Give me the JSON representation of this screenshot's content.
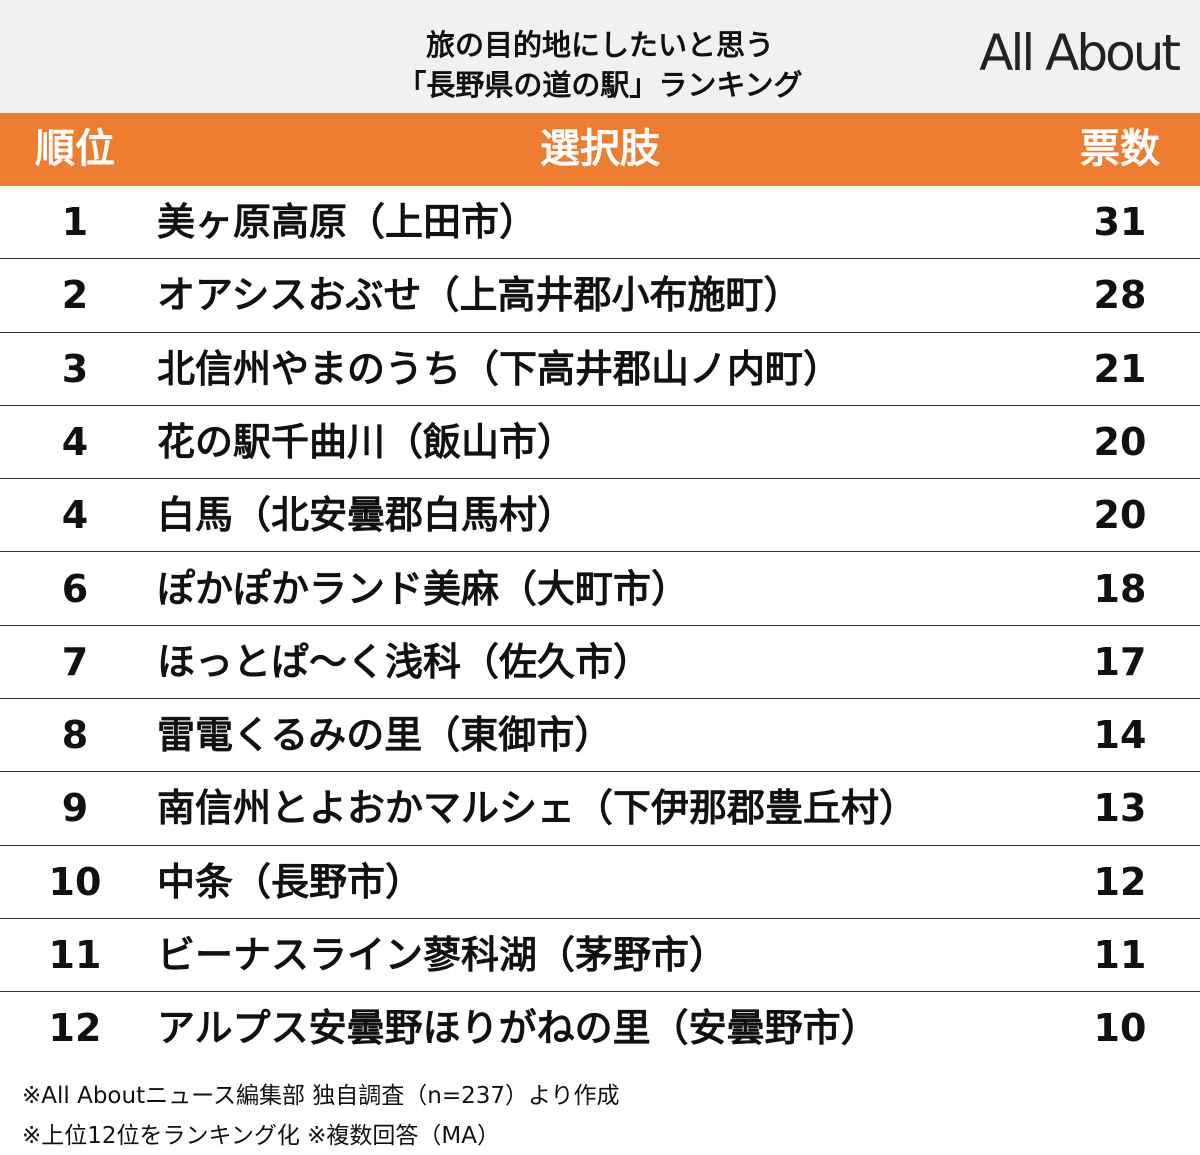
{
  "header": {
    "title_lines": [
      "旅の目的地にしたいと思う",
      "「長野県の道の駅」ランキング"
    ],
    "logo": "All About"
  },
  "table": {
    "columns": [
      "順位",
      "選択肢",
      "票数"
    ],
    "rows": [
      [
        1,
        "美ヶ原高原（上田市）",
        31
      ],
      [
        2,
        "オアシスおぶせ（上高井郡小布施町）",
        28
      ],
      [
        3,
        "北信州やまのうち（下高井郡山ノ内町）",
        21
      ],
      [
        4,
        "花の駅千曲川（飯山市）",
        20
      ],
      [
        4,
        "白馬（北安曇郡白馬村）",
        20
      ],
      [
        6,
        "ぽかぽかランド美麻（大町市）",
        18
      ],
      [
        7,
        "ほっとぱ～く浅科（佐久市）",
        17
      ],
      [
        8,
        "雷電くるみの里（東御市）",
        14
      ],
      [
        9,
        "南信州とよおかマルシェ（下伊那郡豊丘村）",
        13
      ],
      [
        10,
        "中条（長野市）",
        12
      ],
      [
        11,
        "ビーナスライン蓼科湖（茅野市）",
        11
      ],
      [
        12,
        "アルプス安曇野ほりがねの里（安曇野市）",
        10
      ]
    ]
  },
  "footnotes": [
    "※All Aboutニュース編集部 独自調査（n=237）より作成",
    "※上位12位をランキング化 ※複数回答（MA）"
  ]
}
